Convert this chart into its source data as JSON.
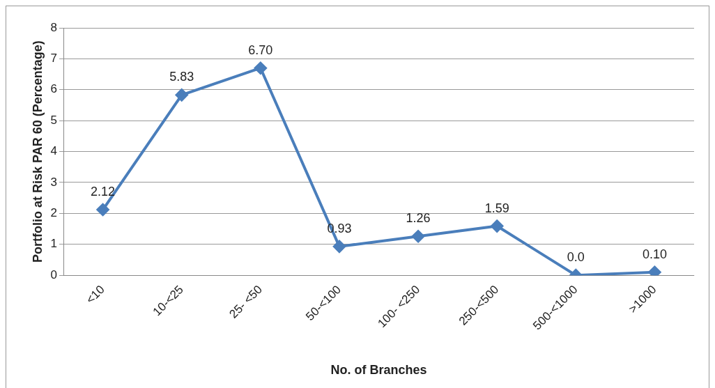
{
  "chart_data": {
    "type": "line",
    "xlabel": "No. of Branches",
    "ylabel": "Portfolio at Risk PAR 60 (Percentage)",
    "categories": [
      "<10",
      "10-<25",
      "25- <50",
      "50-<100",
      "100- <250",
      "250-<500",
      "500-<1000",
      ">1000"
    ],
    "series": [
      {
        "color": "#4a7ebb",
        "values": [
          2.12,
          5.83,
          6.7,
          0.93,
          1.26,
          1.59,
          0,
          0.1
        ],
        "value_labels": [
          "2.12",
          "5.83",
          "6.70",
          "0.93",
          "1.26",
          "1.59",
          "0.0",
          "0.10"
        ]
      }
    ],
    "ylim": [
      0,
      8
    ],
    "yticks": [
      0,
      1,
      2,
      3,
      4,
      5,
      6,
      7,
      8
    ],
    "grid": "y",
    "legend": false,
    "marker": "diamond",
    "line_style": "solid"
  }
}
